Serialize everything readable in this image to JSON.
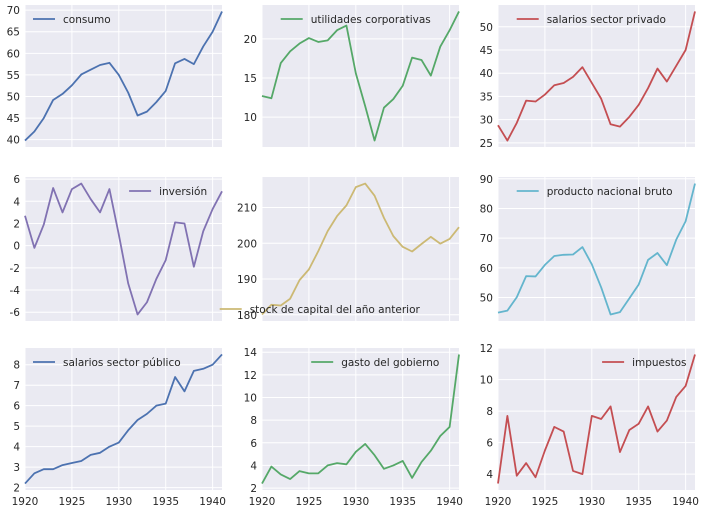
{
  "chart_data": [
    {
      "type": "line",
      "legend": "top-left",
      "color": "#4c72b0",
      "yticks": [
        40,
        45,
        50,
        55,
        60,
        65,
        70
      ],
      "series": [
        {
          "name": "consumo",
          "values": [
            39.8,
            41.9,
            45.0,
            49.2,
            50.6,
            52.6,
            55.1,
            56.2,
            57.3,
            57.8,
            55.0,
            50.9,
            45.6,
            46.5,
            48.7,
            51.3,
            57.7,
            58.7,
            57.5,
            61.6,
            65.0,
            69.7
          ]
        }
      ]
    },
    {
      "type": "line",
      "legend": "top-right",
      "color": "#55a868",
      "yticks": [
        10,
        15,
        20
      ],
      "series": [
        {
          "name": "utilidades corporativas",
          "values": [
            12.7,
            12.4,
            16.9,
            18.4,
            19.4,
            20.1,
            19.6,
            19.8,
            21.1,
            21.7,
            15.6,
            11.4,
            7.0,
            11.2,
            12.3,
            14.0,
            17.6,
            17.3,
            15.3,
            19.0,
            21.1,
            23.5
          ]
        }
      ]
    },
    {
      "type": "line",
      "legend": "top-right",
      "color": "#c44e52",
      "yticks": [
        25,
        30,
        35,
        40,
        45,
        50
      ],
      "series": [
        {
          "name": "salarios sector privado",
          "values": [
            28.8,
            25.5,
            29.3,
            34.1,
            33.9,
            35.4,
            37.4,
            37.9,
            39.2,
            41.3,
            37.9,
            34.5,
            29.0,
            28.5,
            30.6,
            33.2,
            36.8,
            41.0,
            38.2,
            41.6,
            45.0,
            53.3
          ]
        }
      ]
    },
    {
      "type": "line",
      "legend": "top-right",
      "color": "#8172b2",
      "yticks": [
        -6,
        -4,
        -2,
        0,
        2,
        4,
        6
      ],
      "series": [
        {
          "name": "inversión",
          "values": [
            2.7,
            -0.2,
            1.9,
            5.2,
            3.0,
            5.1,
            5.6,
            4.2,
            3.0,
            5.1,
            1.0,
            -3.4,
            -6.2,
            -5.1,
            -3.0,
            -1.3,
            2.1,
            2.0,
            -1.9,
            1.3,
            3.3,
            4.9
          ]
        }
      ]
    },
    {
      "type": "line",
      "legend": "bottom-right",
      "color": "#ccb974",
      "yticks": [
        180,
        190,
        200,
        210
      ],
      "series": [
        {
          "name": "stock de capital del año anterior",
          "values": [
            180.1,
            182.8,
            182.6,
            184.5,
            189.7,
            192.7,
            197.8,
            203.4,
            207.6,
            210.6,
            215.7,
            216.7,
            213.3,
            207.1,
            202.0,
            199.0,
            197.7,
            199.8,
            201.8,
            199.9,
            201.2,
            204.5
          ]
        }
      ]
    },
    {
      "type": "line",
      "legend": "top-right",
      "color": "#64b5cd",
      "yticks": [
        50,
        60,
        70,
        80,
        90
      ],
      "series": [
        {
          "name": "producto nacional bruto",
          "values": [
            44.9,
            45.6,
            50.1,
            57.2,
            57.1,
            61.0,
            64.0,
            64.4,
            64.5,
            67.0,
            61.2,
            53.4,
            44.3,
            45.1,
            49.7,
            54.4,
            62.7,
            65.0,
            60.9,
            69.5,
            75.7,
            88.4
          ]
        }
      ]
    },
    {
      "type": "line",
      "legend": "top-left",
      "color": "#4c72b0",
      "yticks": [
        2,
        3,
        4,
        5,
        6,
        7,
        8
      ],
      "series": [
        {
          "name": "salarios sector público",
          "values": [
            2.2,
            2.7,
            2.9,
            2.9,
            3.1,
            3.2,
            3.3,
            3.6,
            3.7,
            4.0,
            4.2,
            4.8,
            5.3,
            5.6,
            6.0,
            6.1,
            7.4,
            6.7,
            7.7,
            7.8,
            8.0,
            8.5
          ]
        }
      ]
    },
    {
      "type": "line",
      "legend": "top-right",
      "color": "#55a868",
      "yticks": [
        2,
        4,
        6,
        8,
        10,
        12,
        14
      ],
      "series": [
        {
          "name": "gasto del gobierno",
          "values": [
            2.4,
            3.9,
            3.2,
            2.8,
            3.5,
            3.3,
            3.3,
            4.0,
            4.2,
            4.1,
            5.2,
            5.9,
            4.9,
            3.7,
            4.0,
            4.4,
            2.9,
            4.3,
            5.3,
            6.6,
            7.4,
            13.8
          ]
        }
      ]
    },
    {
      "type": "line",
      "legend": "top-right",
      "color": "#c44e52",
      "yticks": [
        4,
        6,
        8,
        10,
        12
      ],
      "series": [
        {
          "name": "impuestos",
          "values": [
            3.4,
            7.7,
            3.9,
            4.7,
            3.8,
            5.5,
            7.0,
            6.7,
            4.2,
            4.0,
            7.7,
            7.5,
            8.3,
            5.4,
            6.8,
            7.2,
            8.3,
            6.7,
            7.4,
            8.9,
            9.6,
            11.6
          ]
        }
      ]
    }
  ],
  "x": [
    1920,
    1921,
    1922,
    1923,
    1924,
    1925,
    1926,
    1927,
    1928,
    1929,
    1930,
    1931,
    1932,
    1933,
    1934,
    1935,
    1936,
    1937,
    1938,
    1939,
    1940,
    1941
  ],
  "xticks": [
    1920,
    1925,
    1930,
    1935,
    1940
  ],
  "xlim": [
    1920,
    1941
  ],
  "style": {
    "background": "#eaeaf2",
    "grid": "#ffffff"
  }
}
